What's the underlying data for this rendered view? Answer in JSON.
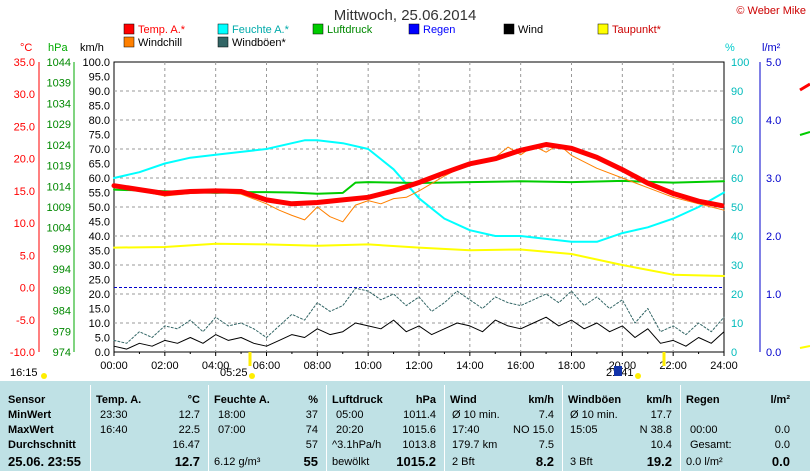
{
  "chart_data": {
    "type": "line",
    "title": "Mittwoch, 25.06.2014",
    "copyright": "© Weber Mike",
    "axes_units": {
      "temp": "°C",
      "press": "hPa",
      "wind": "km/h",
      "hum": "%",
      "rain": "l/m²"
    },
    "x_ticks": [
      "00:00",
      "02:00",
      "04:00",
      "06:00",
      "08:00",
      "10:00",
      "12:00",
      "14:00",
      "16:00",
      "18:00",
      "20:00",
      "22:00",
      "24:00"
    ],
    "temp_ticks": [
      "35.0",
      "30.0",
      "25.0",
      "20.0",
      "15.0",
      "10.0",
      "5.0",
      "0.0",
      "-5.0",
      "-10.0"
    ],
    "press_ticks": [
      "1044",
      "1039",
      "1034",
      "1029",
      "1024",
      "1019",
      "1014",
      "1009",
      "1004",
      "999",
      "994",
      "989",
      "984",
      "979",
      "974"
    ],
    "wind_ticks": [
      "100.0",
      "95.0",
      "90.0",
      "85.0",
      "80.0",
      "75.0",
      "70.0",
      "65.0",
      "60.0",
      "55.0",
      "50.0",
      "45.0",
      "40.0",
      "35.0",
      "30.0",
      "25.0",
      "20.0",
      "15.0",
      "10.0",
      "5.0",
      "0.0"
    ],
    "hum_ticks": [
      "100",
      "90",
      "80",
      "70",
      "60",
      "50",
      "40",
      "30",
      "20",
      "10",
      "0"
    ],
    "rain_ticks": [
      "5.0",
      "4.0",
      "3.0",
      "2.0",
      "1.0",
      "0.0"
    ],
    "legend": [
      {
        "name": "Temp. A.*",
        "color": "#ff0000"
      },
      {
        "name": "Feuchte A.*",
        "color": "#00ffff"
      },
      {
        "name": "Luftdruck",
        "color": "#00cc00"
      },
      {
        "name": "Regen",
        "color": "#0000ff"
      },
      {
        "name": "Wind",
        "color": "#000000"
      },
      {
        "name": "Taupunkt*",
        "color": "#ffff00"
      },
      {
        "name": "Windchill",
        "color": "#ff8000"
      },
      {
        "name": "Windböen*",
        "color": "#336666"
      }
    ],
    "series": [
      {
        "name": "Temp. A.*",
        "unit": "°C",
        "color": "#ff0000",
        "x": [
          0,
          1,
          2,
          3,
          4,
          5,
          6,
          7,
          8,
          9,
          10,
          11,
          12,
          13,
          14,
          15,
          16,
          17,
          18,
          19,
          20,
          21,
          22,
          23,
          23.92
        ],
        "values": [
          15.8,
          15.2,
          14.6,
          14.9,
          15.0,
          14.9,
          13.6,
          13.0,
          13.2,
          13.6,
          14.0,
          15.0,
          16.3,
          17.8,
          19.2,
          20.0,
          21.3,
          22.2,
          21.6,
          20.2,
          18.3,
          16.2,
          14.6,
          13.4,
          12.7
        ]
      },
      {
        "name": "Feuchte A.*",
        "unit": "%",
        "color": "#00ffff",
        "x": [
          0,
          1,
          2,
          3,
          4,
          5,
          6,
          7,
          7.5,
          8,
          9,
          10,
          11,
          12,
          13,
          14,
          15,
          16,
          17,
          18,
          19,
          20,
          21,
          22,
          23,
          24
        ],
        "values": [
          60,
          62,
          65,
          67,
          68,
          69,
          70,
          72,
          73,
          73,
          72,
          70,
          63,
          53,
          46,
          42,
          40,
          40,
          39,
          38,
          38,
          41,
          43,
          46,
          50,
          55
        ]
      },
      {
        "name": "Luftdruck",
        "unit": "hPa",
        "color": "#00cc00",
        "x": [
          0,
          2,
          4,
          5,
          6,
          7,
          8,
          9,
          9.5,
          10,
          12,
          14,
          16,
          18,
          20,
          22,
          24
        ],
        "values": [
          1013.2,
          1012.8,
          1012.4,
          1012.6,
          1012.6,
          1012.5,
          1012.2,
          1012.4,
          1014.9,
          1015.0,
          1014.8,
          1015.0,
          1015.2,
          1015.0,
          1015.3,
          1014.9,
          1015.2
        ]
      },
      {
        "name": "Taupunkt*",
        "unit": "°C",
        "color": "#ffff00",
        "x": [
          0,
          2,
          4,
          6,
          8,
          10,
          12,
          14,
          16,
          18,
          20,
          22,
          24
        ],
        "values": [
          6.2,
          6.3,
          6.8,
          6.7,
          6.5,
          6.7,
          6.2,
          5.8,
          5.9,
          5.2,
          3.5,
          2.0,
          1.8
        ]
      },
      {
        "name": "Windchill",
        "unit": "°C",
        "color": "#ff8000",
        "x": [
          0,
          1,
          2,
          3,
          4,
          5,
          6,
          6.5,
          7,
          7.5,
          8,
          8.5,
          9,
          9.5,
          10,
          10.5,
          11,
          11.5,
          12,
          13,
          14,
          15,
          15.5,
          16,
          16.5,
          17,
          17.5,
          18,
          19,
          20,
          21,
          22,
          23,
          24
        ],
        "values": [
          15.8,
          15.0,
          14.2,
          14.6,
          14.8,
          14.5,
          13.0,
          12.0,
          11.2,
          10.5,
          12.5,
          11.0,
          10.2,
          12.8,
          13.5,
          13.0,
          13.8,
          14.0,
          15.0,
          17.3,
          19.3,
          20.2,
          21.8,
          20.6,
          22.0,
          21.0,
          22.2,
          20.5,
          18.5,
          17.0,
          15.5,
          14.0,
          13.0,
          12.0
        ]
      },
      {
        "name": "Wind",
        "unit": "km/h",
        "color": "#000000",
        "x": [
          0,
          0.5,
          1,
          1.5,
          2,
          2.5,
          3,
          3.5,
          4,
          4.5,
          5,
          5.5,
          6,
          6.5,
          7,
          7.5,
          8,
          8.5,
          9,
          9.5,
          10,
          10.5,
          11,
          11.5,
          12,
          12.5,
          13,
          13.5,
          14,
          14.5,
          15,
          15.5,
          16,
          16.5,
          17,
          17.5,
          18,
          18.5,
          19,
          19.5,
          20,
          20.5,
          21,
          21.5,
          22,
          22.5,
          23,
          23.5,
          24
        ],
        "values": [
          2,
          1,
          3,
          2,
          4,
          3,
          5,
          3,
          6,
          4,
          5,
          3,
          2,
          4,
          6,
          5,
          8,
          6,
          7,
          10,
          9,
          8,
          11,
          7,
          9,
          6,
          8,
          10,
          9,
          7,
          11,
          9,
          8,
          10,
          12,
          9,
          11,
          8,
          10,
          7,
          9,
          5,
          8,
          3,
          4,
          2,
          5,
          3,
          7
        ]
      },
      {
        "name": "Windböen*",
        "unit": "km/h",
        "color": "#336666",
        "x": [
          0,
          0.5,
          1,
          1.5,
          2,
          2.5,
          3,
          3.5,
          4,
          4.5,
          5,
          5.5,
          6,
          6.5,
          7,
          7.5,
          8,
          8.5,
          9,
          9.5,
          10,
          10.5,
          11,
          11.5,
          12,
          12.5,
          13,
          13.5,
          14,
          14.5,
          15,
          15.5,
          16,
          16.5,
          17,
          17.5,
          18,
          18.5,
          19,
          19.5,
          20,
          20.5,
          21,
          21.5,
          22,
          22.5,
          23,
          23.5,
          24
        ],
        "values": [
          4,
          3,
          7,
          5,
          9,
          8,
          11,
          7,
          12,
          9,
          10,
          8,
          5,
          9,
          13,
          11,
          17,
          14,
          16,
          22,
          21,
          18,
          20,
          16,
          19,
          14,
          17,
          21,
          18,
          15,
          19,
          17,
          16,
          18,
          20,
          17,
          21,
          16,
          19,
          15,
          18,
          10,
          15,
          7,
          9,
          6,
          10,
          7,
          12
        ]
      }
    ],
    "markers": [
      {
        "label": "16:15",
        "time": "16:15"
      },
      {
        "label": "05:25",
        "time": "05:25"
      },
      {
        "label": "21:41",
        "time": "21:41"
      }
    ]
  },
  "table": {
    "headers": {
      "sensor": "Sensor",
      "temp": "Temp. A.",
      "temp_unit": "°C",
      "hum": "Feuchte A.",
      "hum_unit": "%",
      "press": "Luftdruck",
      "press_unit": "hPa",
      "wind": "Wind",
      "wind_unit": "km/h",
      "gust": "Windböen",
      "gust_unit": "km/h",
      "rain": "Regen",
      "rain_unit": "l/m²"
    },
    "rows": {
      "min": {
        "label": "MinWert",
        "temp_time": "23:30",
        "temp_val": "12.7",
        "hum_time": "18:00",
        "hum_val": "37",
        "press_time": "05:00",
        "press_val": "1011.4",
        "wind_time": "Ø 10 min.",
        "wind_val": "7.4",
        "gust_time": "Ø 10 min.",
        "gust_val": "17.7",
        "rain_time": "",
        "rain_val": ""
      },
      "max": {
        "label": "MaxWert",
        "temp_time": "16:40",
        "temp_val": "22.5",
        "hum_time": "07:00",
        "hum_val": "74",
        "press_time": "20:20",
        "press_val": "1015.6",
        "wind_time": "17:40",
        "wind_mid": "NO 15.0",
        "gust_time": "15:05",
        "gust_mid": "N 38.8",
        "rain_time": "00:00",
        "rain_val": "0.0"
      },
      "avg": {
        "label": "Durchschnitt",
        "temp_val": "16.47",
        "hum_val": "57",
        "press_time": "^3.1hPa/h",
        "press_val": "1013.8",
        "wind_time": "179.7 km",
        "wind_val": "7.5",
        "gust_val": "10.4",
        "rain_time": "Gesamt:",
        "rain_val": "0.0"
      },
      "cur": {
        "label": "25.06. 23:55",
        "temp_val": "12.7",
        "hum_time": "6.12 g/m³",
        "hum_val": "55",
        "press_time": "bewölkt",
        "press_val": "1015.2",
        "wind_time": "2 Bft",
        "wind_val": "8.2",
        "gust_time": "3 Bft",
        "gust_val": "19.2",
        "rain_time": "0.0 l/m²",
        "rain_val": "0.0"
      }
    }
  }
}
